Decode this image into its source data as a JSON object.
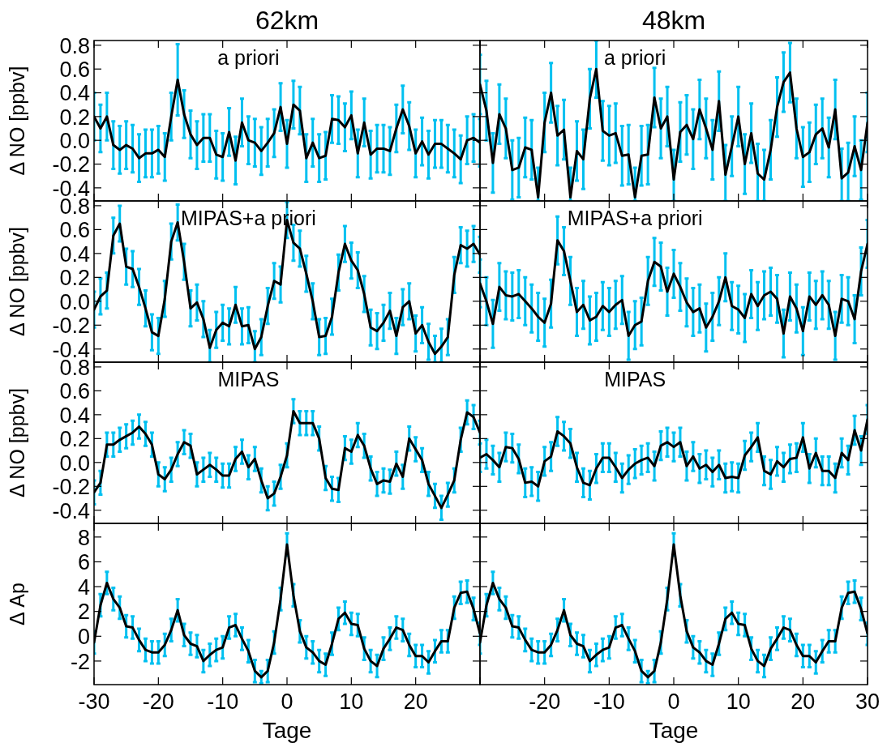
{
  "chart_data": [
    {
      "type": "line",
      "title": "62km",
      "ylabel": "Δ NO [ppbv]",
      "annotations": [
        "a priori"
      ],
      "tick_labels": "y",
      "x": [
        -30,
        -29,
        -28,
        -27,
        -26,
        -25,
        -24,
        -23,
        -22,
        -21,
        -20,
        -19,
        -18,
        -17,
        -16,
        -15,
        -14,
        -13,
        -12,
        -11,
        -10,
        -9,
        -8,
        -7,
        -6,
        -5,
        -4,
        -3,
        -2,
        -1,
        0,
        1,
        2,
        3,
        4,
        5,
        6,
        7,
        8,
        9,
        10,
        11,
        12,
        13,
        14,
        15,
        16,
        17,
        18,
        19,
        20,
        21,
        22,
        23,
        24,
        25,
        26,
        27,
        28,
        29,
        30
      ],
      "xlim": [
        -30,
        30
      ],
      "xticks": [
        {
          "value": -30,
          "label": null
        },
        {
          "value": -20,
          "label": null
        },
        {
          "value": -10,
          "label": null
        },
        {
          "value": 0,
          "label": null
        },
        {
          "value": 10,
          "label": null
        },
        {
          "value": 20,
          "label": null
        },
        {
          "value": 30,
          "label": null
        }
      ],
      "ylim": [
        -0.51,
        0.84
      ],
      "yticks": [
        -0.4,
        -0.2,
        {
          "value": 0,
          "label": "0.0"
        },
        0.2,
        0.4,
        0.6,
        0.8
      ],
      "series": [
        {
          "color": "#000000",
          "values": [
            0.2,
            0.1,
            0.2,
            -0.04,
            -0.08,
            -0.04,
            -0.07,
            -0.15,
            -0.11,
            -0.11,
            -0.08,
            -0.14,
            0.2,
            0.51,
            0.22,
            0.05,
            -0.04,
            0.02,
            0.02,
            -0.12,
            -0.14,
            0.07,
            -0.17,
            0.15,
            0,
            -0.02,
            -0.09,
            -0.02,
            0.06,
            0.28,
            -0.03,
            0.3,
            0.25,
            -0.15,
            -0.02,
            -0.15,
            -0.13,
            0.18,
            0.17,
            0.11,
            0.21,
            -0.11,
            0.15,
            -0.12,
            -0.07,
            -0.07,
            -0.09,
            0.1,
            0.26,
            0.12,
            -0.11,
            -0.01,
            -0.12,
            -0.03,
            -0.03,
            -0.07,
            -0.11,
            -0.16,
            0,
            0.02,
            -0.02
          ],
          "errors": [
            0.2,
            0.2,
            0.2,
            0.2,
            0.2,
            0.2,
            0.2,
            0.2,
            0.2,
            0.2,
            0.2,
            0.2,
            0.2,
            0.3,
            0.2,
            0.2,
            0.2,
            0.2,
            0.2,
            0.2,
            0.2,
            0.2,
            0.2,
            0.2,
            0.2,
            0.2,
            0.2,
            0.2,
            0.2,
            0.2,
            0.2,
            0.2,
            0.2,
            0.2,
            0.2,
            0.2,
            0.2,
            0.2,
            0.2,
            0.2,
            0.2,
            0.2,
            0.2,
            0.2,
            0.2,
            0.2,
            0.2,
            0.2,
            0.2,
            0.2,
            0.2,
            0.2,
            0.2,
            0.2,
            0.2,
            0.2,
            0.2,
            0.2,
            0.2,
            0.2,
            0.2
          ]
        }
      ]
    },
    {
      "type": "line",
      "title": "48km",
      "annotations": [
        "a priori"
      ],
      "tick_labels": false,
      "x": [
        -30,
        -29,
        -28,
        -27,
        -26,
        -25,
        -24,
        -23,
        -22,
        -21,
        -20,
        -19,
        -18,
        -17,
        -16,
        -15,
        -14,
        -13,
        -12,
        -11,
        -10,
        -9,
        -8,
        -7,
        -6,
        -5,
        -4,
        -3,
        -2,
        -1,
        0,
        1,
        2,
        3,
        4,
        5,
        6,
        7,
        8,
        9,
        10,
        11,
        12,
        13,
        14,
        15,
        16,
        17,
        18,
        19,
        20,
        21,
        22,
        23,
        24,
        25,
        26,
        27,
        28,
        29,
        30
      ],
      "xlim": [
        -30,
        30
      ],
      "xticks": [
        {
          "value": -30,
          "label": null
        },
        {
          "value": -20,
          "label": null
        },
        {
          "value": -10,
          "label": null
        },
        {
          "value": 0,
          "label": null
        },
        {
          "value": 10,
          "label": null
        },
        {
          "value": 20,
          "label": null
        },
        {
          "value": 30,
          "label": null
        }
      ],
      "ylim": [
        -0.51,
        0.84
      ],
      "yticks": [
        {
          "value": -0.4,
          "label": null
        },
        {
          "value": -0.2,
          "label": null
        },
        {
          "value": 0,
          "label": null
        },
        {
          "value": 0.2,
          "label": null
        },
        {
          "value": 0.4,
          "label": null
        },
        {
          "value": 0.6,
          "label": null
        },
        {
          "value": 0.8,
          "label": null
        }
      ],
      "series": [
        {
          "color": "#000000",
          "values": [
            0.47,
            0.25,
            -0.19,
            0.22,
            0.1,
            -0.25,
            -0.23,
            -0.06,
            -0.08,
            -0.48,
            0.15,
            0.4,
            0.04,
            0.09,
            -0.48,
            -0.09,
            -0.16,
            0.35,
            0.6,
            0.08,
            0.04,
            0.06,
            -0.13,
            -0.12,
            -0.48,
            -0.13,
            -0.12,
            0.36,
            0.1,
            0.2,
            -0.33,
            0.07,
            0.13,
            0.01,
            0.26,
            0.1,
            -0.08,
            0.33,
            -0.29,
            -0.05,
            0.2,
            -0.2,
            0.06,
            -0.28,
            -0.33,
            -0.08,
            0.28,
            0.49,
            0.57,
            0.1,
            -0.14,
            -0.1,
            0.05,
            0.1,
            -0.06,
            0.26,
            -0.32,
            -0.27,
            -0.05,
            -0.25,
            0.15
          ],
          "errors": [
            0.25,
            0.25,
            0.25,
            0.25,
            0.25,
            0.25,
            0.25,
            0.25,
            0.25,
            [
              -0.51,
              -0.23
            ],
            0.25,
            0.25,
            0.25,
            0.25,
            [
              -0.51,
              -0.23
            ],
            0.25,
            0.25,
            0.25,
            0.24,
            0.25,
            0.25,
            0.25,
            0.25,
            0.25,
            [
              -0.51,
              -0.23
            ],
            0.25,
            0.25,
            0.25,
            0.25,
            0.25,
            [
              -0.51,
              -0.08
            ],
            0.25,
            0.25,
            0.25,
            0.25,
            0.25,
            0.25,
            0.25,
            [
              -0.51,
              -0.04
            ],
            0.25,
            0.25,
            0.25,
            0.25,
            [
              -0.51,
              -0.03
            ],
            [
              -0.51,
              -0.08
            ],
            0.25,
            0.25,
            0.25,
            0.25,
            0.25,
            0.25,
            0.25,
            0.25,
            0.25,
            0.25,
            0.25,
            [
              -0.51,
              -0.07
            ],
            [
              -0.51,
              -0.02
            ],
            0.25,
            0.25,
            0.25
          ]
        }
      ]
    },
    {
      "type": "line",
      "ylabel": "Δ NO [ppbv]",
      "annotations": [
        "MIPAS+a priori"
      ],
      "tick_labels": "y",
      "x": [
        -30,
        -29,
        -28,
        -27,
        -26,
        -25,
        -24,
        -23,
        -22,
        -21,
        -20,
        -19,
        -18,
        -17,
        -16,
        -15,
        -14,
        -13,
        -12,
        -11,
        -10,
        -9,
        -8,
        -7,
        -6,
        -5,
        -4,
        -3,
        -2,
        -1,
        0,
        1,
        2,
        3,
        4,
        5,
        6,
        7,
        8,
        9,
        10,
        11,
        12,
        13,
        14,
        15,
        16,
        17,
        18,
        19,
        20,
        21,
        22,
        23,
        24,
        25,
        26,
        27,
        28,
        29,
        30
      ],
      "xlim": [
        -30,
        30
      ],
      "xticks": [
        {
          "value": -30,
          "label": null
        },
        {
          "value": -20,
          "label": null
        },
        {
          "value": -10,
          "label": null
        },
        {
          "value": 0,
          "label": null
        },
        {
          "value": 10,
          "label": null
        },
        {
          "value": 20,
          "label": null
        },
        {
          "value": 30,
          "label": null
        }
      ],
      "ylim": [
        -0.51,
        0.84
      ],
      "yticks": [
        -0.4,
        -0.2,
        {
          "value": 0,
          "label": "0.0"
        },
        0.2,
        0.4,
        0.6,
        0.8
      ],
      "series": [
        {
          "color": "#000000",
          "values": [
            -0.07,
            0.04,
            0.09,
            0.55,
            0.65,
            0.29,
            0.27,
            0.12,
            -0.06,
            -0.26,
            -0.29,
            0.02,
            0.5,
            0.66,
            0.33,
            -0.06,
            -0.01,
            -0.15,
            -0.39,
            -0.24,
            -0.18,
            -0.21,
            -0.03,
            -0.21,
            -0.2,
            -0.4,
            -0.3,
            -0.04,
            0.17,
            0.14,
            0.68,
            0.49,
            0.44,
            0.23,
            0,
            -0.3,
            -0.29,
            -0.13,
            0.24,
            0.48,
            0.34,
            0.26,
            0.06,
            -0.22,
            -0.25,
            -0.18,
            -0.08,
            -0.29,
            -0.05,
            0,
            -0.27,
            -0.2,
            -0.34,
            -0.44,
            -0.38,
            -0.3,
            0.22,
            0.47,
            0.44,
            0.48,
            0.39
          ],
          "errors": [
            0.15,
            0.15,
            0.15,
            0.15,
            0.15,
            0.15,
            0.15,
            0.15,
            0.15,
            0.15,
            0.15,
            0.15,
            0.15,
            0.15,
            0.15,
            0.15,
            0.15,
            0.15,
            [
              -0.51,
              -0.24
            ],
            0.15,
            0.15,
            0.15,
            0.15,
            0.15,
            0.15,
            [
              -0.51,
              -0.25
            ],
            0.15,
            0.15,
            0.15,
            0.15,
            0.15,
            0.15,
            0.15,
            0.15,
            0.15,
            0.15,
            0.15,
            0.15,
            0.15,
            0.15,
            0.15,
            0.15,
            0.15,
            0.15,
            0.15,
            0.15,
            0.15,
            0.15,
            0.15,
            0.15,
            0.15,
            0.15,
            0.15,
            [
              -0.51,
              -0.29
            ],
            [
              -0.51,
              -0.23
            ],
            0.15,
            0.15,
            0.15,
            0.15,
            0.15,
            0.15
          ]
        }
      ]
    },
    {
      "type": "line",
      "annotations": [
        "MIPAS+a priori"
      ],
      "tick_labels": false,
      "x": [
        -30,
        -29,
        -28,
        -27,
        -26,
        -25,
        -24,
        -23,
        -22,
        -21,
        -20,
        -19,
        -18,
        -17,
        -16,
        -15,
        -14,
        -13,
        -12,
        -11,
        -10,
        -9,
        -8,
        -7,
        -6,
        -5,
        -4,
        -3,
        -2,
        -1,
        0,
        1,
        2,
        3,
        4,
        5,
        6,
        7,
        8,
        9,
        10,
        11,
        12,
        13,
        14,
        15,
        16,
        17,
        18,
        19,
        20,
        21,
        22,
        23,
        24,
        25,
        26,
        27,
        28,
        29,
        30
      ],
      "xlim": [
        -30,
        30
      ],
      "xticks": [
        {
          "value": -30,
          "label": null
        },
        {
          "value": -20,
          "label": null
        },
        {
          "value": -10,
          "label": null
        },
        {
          "value": 0,
          "label": null
        },
        {
          "value": 10,
          "label": null
        },
        {
          "value": 20,
          "label": null
        },
        {
          "value": 30,
          "label": null
        }
      ],
      "ylim": [
        -0.51,
        0.84
      ],
      "yticks": [
        {
          "value": -0.4,
          "label": null
        },
        {
          "value": -0.2,
          "label": null
        },
        {
          "value": 0,
          "label": null
        },
        {
          "value": 0.2,
          "label": null
        },
        {
          "value": 0.4,
          "label": null
        },
        {
          "value": 0.6,
          "label": null
        },
        {
          "value": 0.8,
          "label": null
        }
      ],
      "series": [
        {
          "color": "#000000",
          "values": [
            0.15,
            0,
            -0.19,
            0.12,
            0.05,
            0.04,
            0.06,
            0,
            -0.06,
            -0.13,
            -0.18,
            -0.02,
            0.51,
            0.42,
            0.17,
            -0.09,
            -0.03,
            -0.16,
            -0.13,
            -0.04,
            -0.09,
            -0.03,
            0.01,
            -0.29,
            -0.2,
            -0.17,
            0.17,
            0.33,
            0.29,
            0.08,
            0.23,
            0.12,
            -0.01,
            -0.09,
            -0.06,
            -0.22,
            -0.13,
            0,
            0.2,
            -0.04,
            -0.07,
            -0.14,
            0.06,
            -0.04,
            0.05,
            0.08,
            0.02,
            -0.27,
            0.04,
            -0.06,
            -0.25,
            0.04,
            -0.03,
            0.05,
            -0.03,
            -0.29,
            0.02,
            0,
            -0.15,
            0.25,
            0.48
          ],
          "errors": [
            0.2,
            0.2,
            0.2,
            0.2,
            0.2,
            0.2,
            0.2,
            0.2,
            0.2,
            0.2,
            0.2,
            0.2,
            0.2,
            0.2,
            0.2,
            0.2,
            0.2,
            0.2,
            0.2,
            0.2,
            0.2,
            0.2,
            0.2,
            0.2,
            0.2,
            0.2,
            0.2,
            0.2,
            0.2,
            0.2,
            0.2,
            0.2,
            0.2,
            0.2,
            0.2,
            0.2,
            0.2,
            0.2,
            0.2,
            0.2,
            0.2,
            0.2,
            0.2,
            0.2,
            0.2,
            0.2,
            0.2,
            0.2,
            0.2,
            0.2,
            0.2,
            0.2,
            0.2,
            0.2,
            0.2,
            0.2,
            0.2,
            0.2,
            0.2,
            0.2,
            0.2
          ]
        }
      ]
    },
    {
      "type": "line",
      "ylabel": "Δ NO [ppbv]",
      "annotations": [
        "MIPAS"
      ],
      "tick_labels": "y",
      "x": [
        -30,
        -29,
        -28,
        -27,
        -26,
        -25,
        -24,
        -23,
        -22,
        -21,
        -20,
        -19,
        -18,
        -17,
        -16,
        -15,
        -14,
        -13,
        -12,
        -11,
        -10,
        -9,
        -8,
        -7,
        -6,
        -5,
        -4,
        -3,
        -2,
        -1,
        0,
        1,
        2,
        3,
        4,
        5,
        6,
        7,
        8,
        9,
        10,
        11,
        12,
        13,
        14,
        15,
        16,
        17,
        18,
        19,
        20,
        21,
        22,
        23,
        24,
        25,
        26,
        27,
        28,
        29,
        30
      ],
      "xlim": [
        -30,
        30
      ],
      "xticks": [
        {
          "value": -30,
          "label": null
        },
        {
          "value": -20,
          "label": null
        },
        {
          "value": -10,
          "label": null
        },
        {
          "value": 0,
          "label": null
        },
        {
          "value": 10,
          "label": null
        },
        {
          "value": 20,
          "label": null
        },
        {
          "value": 30,
          "label": null
        }
      ],
      "ylim": [
        -0.51,
        0.84
      ],
      "yticks": [
        -0.4,
        -0.2,
        {
          "value": 0,
          "label": "0.0"
        },
        0.2,
        0.4,
        0.6,
        0.8
      ],
      "series": [
        {
          "color": "#000000",
          "values": [
            -0.25,
            -0.17,
            0.15,
            0.15,
            0.19,
            0.22,
            0.25,
            0.3,
            0.24,
            0.15,
            -0.1,
            -0.14,
            -0.06,
            0.07,
            0.17,
            0.14,
            -0.1,
            -0.06,
            -0.02,
            -0.06,
            -0.11,
            -0.11,
            0.03,
            0.09,
            -0.04,
            0.03,
            -0.15,
            -0.3,
            -0.26,
            -0.12,
            0.06,
            0.43,
            0.33,
            0.33,
            0.33,
            0.2,
            -0.13,
            -0.22,
            -0.23,
            0.12,
            0.09,
            0.23,
            0.14,
            -0.05,
            -0.18,
            -0.15,
            -0.16,
            -0.01,
            -0.12,
            0.2,
            0.11,
            0.02,
            -0.18,
            -0.28,
            -0.38,
            -0.27,
            -0.15,
            0.19,
            0.42,
            0.38,
            0.25
          ],
          "errors": [
            0.1,
            0.1,
            0.1,
            0.1,
            0.1,
            0.1,
            0.1,
            0.1,
            0.1,
            0.1,
            0.1,
            0.1,
            0.1,
            0.1,
            0.1,
            0.1,
            0.1,
            0.1,
            0.1,
            0.1,
            0.1,
            0.1,
            0.1,
            0.1,
            0.1,
            0.1,
            0.1,
            0.1,
            0.1,
            0.1,
            0.1,
            0.1,
            0.1,
            0.1,
            0.1,
            0.1,
            0.1,
            0.1,
            0.1,
            0.1,
            0.1,
            0.1,
            0.1,
            0.1,
            0.1,
            0.1,
            0.1,
            0.1,
            0.1,
            0.1,
            0.1,
            0.1,
            0.1,
            0.1,
            0.1,
            0.1,
            0.1,
            0.1,
            0.1,
            0.1,
            0.1
          ]
        }
      ]
    },
    {
      "type": "line",
      "annotations": [
        "MIPAS"
      ],
      "tick_labels": false,
      "x": [
        -30,
        -29,
        -28,
        -27,
        -26,
        -25,
        -24,
        -23,
        -22,
        -21,
        -20,
        -19,
        -18,
        -17,
        -16,
        -15,
        -14,
        -13,
        -12,
        -11,
        -10,
        -9,
        -8,
        -7,
        -6,
        -5,
        -4,
        -3,
        -2,
        -1,
        0,
        1,
        2,
        3,
        4,
        5,
        6,
        7,
        8,
        9,
        10,
        11,
        12,
        13,
        14,
        15,
        16,
        17,
        18,
        19,
        20,
        21,
        22,
        23,
        24,
        25,
        26,
        27,
        28,
        29,
        30
      ],
      "xlim": [
        -30,
        30
      ],
      "xticks": [
        {
          "value": -30,
          "label": null
        },
        {
          "value": -20,
          "label": null
        },
        {
          "value": -10,
          "label": null
        },
        {
          "value": 0,
          "label": null
        },
        {
          "value": 10,
          "label": null
        },
        {
          "value": 20,
          "label": null
        },
        {
          "value": 30,
          "label": null
        }
      ],
      "ylim": [
        -0.51,
        0.84
      ],
      "yticks": [
        {
          "value": -0.4,
          "label": null
        },
        {
          "value": -0.2,
          "label": null
        },
        {
          "value": 0,
          "label": null
        },
        {
          "value": 0.2,
          "label": null
        },
        {
          "value": 0.4,
          "label": null
        },
        {
          "value": 0.6,
          "label": null
        },
        {
          "value": 0.8,
          "label": null
        }
      ],
      "series": [
        {
          "color": "#000000",
          "values": [
            0.04,
            0.07,
            0.02,
            -0.04,
            0.13,
            0.12,
            0.03,
            -0.17,
            -0.16,
            -0.2,
            0.01,
            0.05,
            0.26,
            0.22,
            0.16,
            -0.04,
            -0.17,
            -0.19,
            -0.05,
            0.04,
            0.04,
            -0.04,
            -0.13,
            -0.06,
            -0.01,
            0.02,
            0.04,
            -0.03,
            0.14,
            0.17,
            0.13,
            0.17,
            -0.03,
            0.05,
            -0.05,
            -0.02,
            -0.08,
            -0.02,
            -0.13,
            -0.12,
            -0.13,
            0.06,
            0.13,
            0.21,
            -0.07,
            -0.1,
            0.01,
            -0.04,
            0.03,
            0.04,
            0.21,
            -0.05,
            0.08,
            -0.07,
            -0.07,
            -0.13,
            0.08,
            0.02,
            0.27,
            0.1,
            0.36
          ],
          "errors": [
            0.12,
            0.12,
            0.12,
            0.12,
            0.12,
            0.12,
            0.12,
            0.12,
            0.12,
            0.12,
            0.12,
            0.12,
            0.12,
            0.12,
            0.12,
            0.12,
            0.12,
            0.12,
            0.12,
            0.12,
            0.12,
            0.12,
            0.12,
            0.12,
            0.12,
            0.12,
            0.12,
            0.12,
            0.12,
            0.12,
            0.12,
            0.12,
            0.12,
            0.12,
            0.12,
            0.12,
            0.12,
            0.12,
            0.12,
            0.12,
            0.12,
            0.12,
            0.12,
            0.12,
            0.12,
            0.12,
            0.12,
            0.12,
            0.12,
            0.12,
            0.12,
            0.12,
            0.12,
            0.12,
            0.12,
            0.12,
            0.12,
            0.12,
            0.12,
            0.12,
            0.12
          ]
        }
      ]
    },
    {
      "type": "line",
      "ylabel": "Δ Ap",
      "xlabel": "Tage",
      "x": [
        -30,
        -29,
        -28,
        -27,
        -26,
        -25,
        -24,
        -23,
        -22,
        -21,
        -20,
        -19,
        -18,
        -17,
        -16,
        -15,
        -14,
        -13,
        -12,
        -11,
        -10,
        -9,
        -8,
        -7,
        -6,
        -5,
        -4,
        -3,
        -2,
        -1,
        0,
        1,
        2,
        3,
        4,
        5,
        6,
        7,
        8,
        9,
        10,
        11,
        12,
        13,
        14,
        15,
        16,
        17,
        18,
        19,
        20,
        21,
        22,
        23,
        24,
        25,
        26,
        27,
        28,
        29,
        30
      ],
      "xlim": [
        -30,
        30
      ],
      "xticks": [
        -30,
        -20,
        -10,
        0,
        10,
        20,
        {
          "value": 30,
          "label": null
        }
      ],
      "ylim": [
        -3.9,
        9.1
      ],
      "yticks": [
        -2,
        0,
        2,
        4,
        6,
        8
      ],
      "series": [
        {
          "color": "#000000",
          "values": [
            -0.5,
            2.5,
            4.3,
            3,
            2.3,
            0.8,
            0.7,
            -0.3,
            -1.1,
            -1.3,
            -1.3,
            -0.7,
            0.5,
            2.1,
            0.1,
            -0.6,
            -0.8,
            -2,
            -1.5,
            -1.1,
            -0.9,
            0.7,
            0.9,
            -0.2,
            -1.2,
            -2.8,
            -3.3,
            -2.8,
            -0.5,
            3,
            7.4,
            3.3,
            0.4,
            -0.9,
            -1.3,
            -2,
            -2.3,
            -0.6,
            1.4,
            1.9,
            1,
            0.9,
            -1,
            -2,
            -2.4,
            -1,
            -0.2,
            0.7,
            0.5,
            -0.7,
            -1.6,
            -1.6,
            -2.1,
            -1.2,
            -0.4,
            -0.4,
            2.3,
            3.5,
            3.6,
            2.2,
            0.2
          ],
          "errors": [
            0.9,
            0.9,
            0.9,
            0.9,
            0.9,
            0.9,
            0.9,
            0.9,
            0.9,
            0.9,
            0.9,
            0.9,
            0.9,
            0.9,
            0.9,
            0.9,
            0.9,
            0.9,
            0.9,
            0.9,
            0.9,
            0.9,
            0.9,
            0.9,
            0.9,
            0.9,
            0.5,
            0.9,
            0.9,
            0.9,
            0.9,
            0.9,
            0.9,
            0.9,
            0.9,
            0.9,
            0.9,
            0.9,
            0.9,
            0.9,
            0.9,
            0.9,
            0.9,
            0.9,
            0.9,
            0.9,
            0.9,
            0.9,
            0.9,
            0.9,
            0.9,
            0.9,
            0.9,
            0.9,
            0.9,
            0.9,
            0.9,
            0.9,
            0.9,
            0.9,
            0.9
          ]
        }
      ]
    },
    {
      "type": "line",
      "xlabel": "Tage",
      "tick_labels": "x",
      "x": [
        -30,
        -29,
        -28,
        -27,
        -26,
        -25,
        -24,
        -23,
        -22,
        -21,
        -20,
        -19,
        -18,
        -17,
        -16,
        -15,
        -14,
        -13,
        -12,
        -11,
        -10,
        -9,
        -8,
        -7,
        -6,
        -5,
        -4,
        -3,
        -2,
        -1,
        0,
        1,
        2,
        3,
        4,
        5,
        6,
        7,
        8,
        9,
        10,
        11,
        12,
        13,
        14,
        15,
        16,
        17,
        18,
        19,
        20,
        21,
        22,
        23,
        24,
        25,
        26,
        27,
        28,
        29,
        30
      ],
      "xlim": [
        -30,
        30
      ],
      "xticks": [
        {
          "value": -30,
          "label": null
        },
        -20,
        -10,
        0,
        10,
        20,
        30
      ],
      "ylim": [
        -3.9,
        9.1
      ],
      "yticks": [
        {
          "value": -2,
          "label": null
        },
        {
          "value": 0,
          "label": null
        },
        {
          "value": 2,
          "label": null
        },
        {
          "value": 4,
          "label": null
        },
        {
          "value": 6,
          "label": null
        },
        {
          "value": 8,
          "label": null
        }
      ],
      "series": [
        {
          "color": "#000000",
          "values": [
            -0.5,
            2.5,
            4.3,
            3,
            2.3,
            0.8,
            0.7,
            -0.3,
            -1.1,
            -1.3,
            -1.3,
            -0.7,
            0.5,
            2.1,
            0.1,
            -0.6,
            -0.8,
            -2,
            -1.5,
            -1.1,
            -0.9,
            0.7,
            0.9,
            -0.2,
            -1.2,
            -2.8,
            -3.3,
            -2.8,
            -0.5,
            3,
            7.4,
            3.3,
            0.4,
            -0.9,
            -1.3,
            -2,
            -2.3,
            -0.6,
            1.4,
            1.9,
            1,
            0.9,
            -1,
            -2,
            -2.4,
            -1,
            -0.2,
            0.7,
            0.5,
            -0.7,
            -1.6,
            -1.6,
            -2.1,
            -1.2,
            -0.4,
            -0.4,
            2.3,
            3.5,
            3.6,
            2.2,
            0.2
          ],
          "errors": [
            0.9,
            0.9,
            0.9,
            0.9,
            0.9,
            0.9,
            0.9,
            0.9,
            0.9,
            0.9,
            0.9,
            0.9,
            0.9,
            0.9,
            0.9,
            0.9,
            0.9,
            0.9,
            0.9,
            0.9,
            0.9,
            0.9,
            0.9,
            0.9,
            0.9,
            0.9,
            0.5,
            0.9,
            0.9,
            0.9,
            0.9,
            0.9,
            0.9,
            0.9,
            0.9,
            0.9,
            0.9,
            0.9,
            0.9,
            0.9,
            0.9,
            0.9,
            0.9,
            0.9,
            0.9,
            0.9,
            0.9,
            0.9,
            0.9,
            0.9,
            0.9,
            0.9,
            0.9,
            0.9,
            0.9,
            0.9,
            0.9,
            0.9,
            0.9,
            0.9,
            0.9
          ]
        }
      ]
    }
  ]
}
